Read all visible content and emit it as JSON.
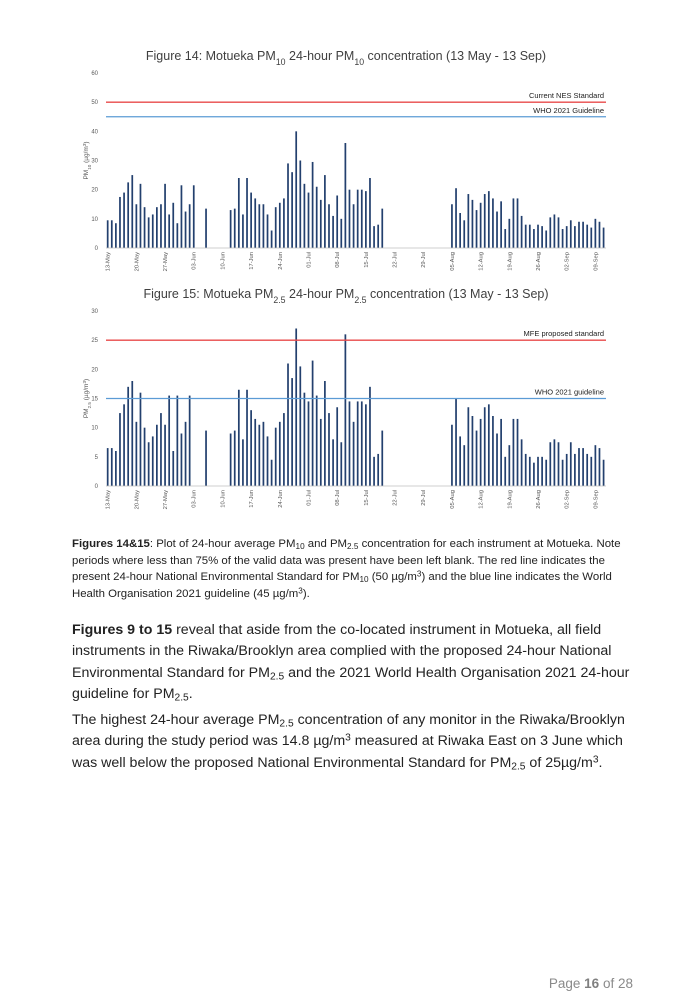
{
  "chart_data": [
    {
      "type": "bar",
      "title_parts": [
        "Figure 14: Motueka PM",
        "10",
        " 24-hour PM",
        "10",
        " concentration (13 May - 13 Sep)"
      ],
      "ylabel_parts": [
        "PM",
        "10",
        " (µg/m",
        "3",
        ")"
      ],
      "ylim": [
        0,
        60
      ],
      "yticks": [
        0,
        10,
        20,
        30,
        40,
        50,
        60
      ],
      "grid": false,
      "start_date": "13-May",
      "xtick_labels": [
        "13-May",
        "20-May",
        "27-May",
        "03-Jun",
        "10-Jun",
        "17-Jun",
        "24-Jun",
        "01-Jul",
        "08-Jul",
        "15-Jul",
        "22-Jul",
        "29-Jul",
        "05-Aug",
        "12-Aug",
        "19-Aug",
        "26-Aug",
        "02-Sep",
        "09-Sep"
      ],
      "values": [
        9.5,
        9.5,
        8.5,
        17.5,
        19,
        22.5,
        25,
        15,
        22,
        14,
        10.5,
        11.5,
        14,
        15,
        22,
        11.5,
        15.5,
        8.5,
        21.5,
        12.5,
        15,
        21.5,
        null,
        null,
        13.5,
        null,
        null,
        null,
        null,
        null,
        13,
        13.5,
        24,
        11.5,
        24,
        19,
        17,
        15,
        15,
        11.5,
        6,
        14,
        15.5,
        17,
        29,
        26,
        40,
        30,
        22,
        19,
        29.5,
        21,
        16.5,
        25,
        15,
        11,
        18,
        10,
        36,
        20,
        15,
        20,
        20,
        19.5,
        24,
        7.5,
        8,
        13.5,
        null,
        null,
        null,
        null,
        null,
        null,
        null,
        null,
        null,
        null,
        null,
        null,
        null,
        null,
        null,
        null,
        15,
        20.5,
        12,
        9.5,
        18.5,
        16.5,
        13,
        15.5,
        18.5,
        19.5,
        17,
        12.5,
        16,
        6.5,
        10,
        17,
        17,
        11,
        8,
        8,
        6.5,
        8,
        7.5,
        6,
        10.5,
        11.5,
        10.5,
        6.5,
        7.5,
        9.5,
        7.5,
        9,
        9,
        8,
        7,
        10,
        9,
        7
      ],
      "reference_lines": [
        {
          "value": 50,
          "label": "Current NES Standard",
          "color": "#e84a4a"
        },
        {
          "value": 45,
          "label": "WHO 2021 Guideline",
          "color": "#5b9bd5"
        }
      ],
      "bar_color": "#23406e"
    },
    {
      "type": "bar",
      "title_parts": [
        "Figure 15: Motueka PM",
        "2.5",
        " 24-hour PM",
        "2.5",
        " concentration (13 May - 13 Sep)"
      ],
      "ylabel_parts": [
        "PM",
        "2.5",
        " (µg/m",
        "3",
        ")"
      ],
      "ylim": [
        0,
        30
      ],
      "yticks": [
        0,
        5,
        10,
        15,
        20,
        25,
        30
      ],
      "grid": false,
      "start_date": "13-May",
      "xtick_labels": [
        "13-May",
        "20-May",
        "27-May",
        "03-Jun",
        "10-Jun",
        "17-Jun",
        "24-Jun",
        "01-Jul",
        "08-Jul",
        "15-Jul",
        "22-Jul",
        "29-Jul",
        "05-Aug",
        "12-Aug",
        "19-Aug",
        "26-Aug",
        "02-Sep",
        "09-Sep"
      ],
      "values": [
        6.5,
        6.5,
        6,
        12.5,
        14,
        17,
        18,
        11,
        16,
        10,
        7.5,
        8.5,
        10.5,
        12.5,
        10.5,
        15.5,
        6,
        15.5,
        9,
        11,
        15.5,
        null,
        null,
        null,
        9.5,
        null,
        null,
        null,
        null,
        null,
        9,
        9.5,
        16.5,
        8,
        16.5,
        13,
        11.5,
        10.5,
        11,
        8.5,
        4.5,
        10,
        11,
        12.5,
        21,
        18.5,
        27,
        20.5,
        16,
        14.5,
        21.5,
        15.5,
        11.5,
        18,
        12.5,
        8,
        13.5,
        7.5,
        26,
        14.5,
        11,
        14.5,
        14.5,
        14,
        17,
        5,
        5.5,
        9.5,
        null,
        null,
        null,
        null,
        null,
        null,
        null,
        null,
        null,
        null,
        null,
        null,
        null,
        null,
        null,
        null,
        10.5,
        15,
        8.5,
        7,
        13.5,
        12,
        9.5,
        11.5,
        13.5,
        14,
        12,
        9,
        11.5,
        5,
        7,
        11.5,
        11.5,
        8,
        5.5,
        5,
        4,
        5,
        5,
        4.5,
        7.5,
        8,
        7.5,
        4.5,
        5.5,
        7.5,
        5.5,
        6.5,
        6.5,
        5.5,
        5,
        7,
        6.5,
        4.5
      ],
      "reference_lines": [
        {
          "value": 25,
          "label": "MFE proposed standard",
          "color": "#e84a4a"
        },
        {
          "value": 15,
          "label": "WHO 2021 guideline",
          "color": "#5b9bd5"
        }
      ],
      "bar_color": "#23406e"
    }
  ],
  "caption": {
    "lead": "Figures 14&15",
    "t1": ": Plot of 24-hour average PM",
    "s1": "10",
    "t2": " and PM",
    "s2": "2.5",
    "t3": " concentration for each instrument at Motueka. Note periods where less than 75% of the valid data was present have been left blank. The red line indicates the present 24-hour National Environmental Standard for PM",
    "s3": "10",
    "t4": " (50 µg/m",
    "p1": "3",
    "t5": ") and the blue line indicates the World Health Organisation 2021 guideline (45 µg/m",
    "p2": "3",
    "t6": ")."
  },
  "para1": {
    "lead": "Figures 9 to 15",
    "t1": " reveal that aside from the co-located instrument in Motueka, all field instruments in the Riwaka/Brooklyn area complied with the proposed 24-hour National Environmental Standard for PM",
    "s1": "2.5",
    "t2": " and the 2021 World Health Organisation 2021 24-hour guideline for PM",
    "s2": "2.5",
    "t3": "."
  },
  "para2": {
    "t1": "The highest 24-hour average PM",
    "s1": "2.5",
    "t2": " concentration of any monitor in the Riwaka/Brooklyn area during the study period was 14.8 µg/m",
    "p1": "3",
    "t3": " measured at Riwaka East on 3 June which was well below the proposed National Environmental Standard for PM",
    "s2": "2.5",
    "t4": " of 25µg/m",
    "p2": "3",
    "t5": "."
  },
  "footer": {
    "page_word": "Page ",
    "page_num": "16",
    "of_word": " of ",
    "total": "28"
  }
}
